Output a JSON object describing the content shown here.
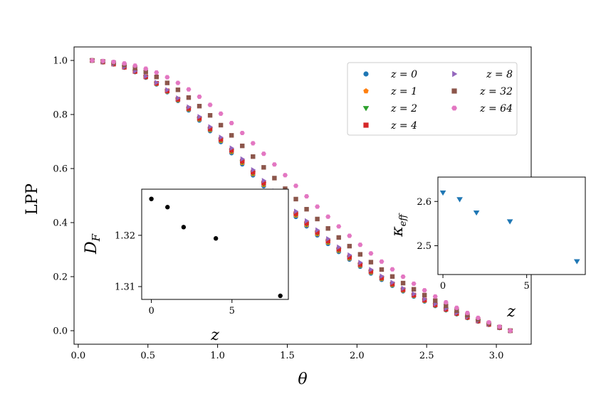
{
  "chart_data": [
    {
      "type": "scatter",
      "xlabel": "θ",
      "ylabel": "LPP",
      "xlim": [
        -0.03,
        3.25
      ],
      "ylim": [
        -0.05,
        1.05
      ],
      "xticks": [
        "0.0",
        "0.5",
        "1.0",
        "1.5",
        "2.0",
        "2.5",
        "3.0"
      ],
      "yticks": [
        "0.0",
        "0.2",
        "0.4",
        "0.6",
        "0.8",
        "1.0"
      ],
      "grid": false,
      "legend_position": "top-right",
      "n_points": 40,
      "x_range": [
        0.1,
        3.1
      ],
      "series": [
        {
          "name": "z = 0",
          "marker": "circle",
          "color": "#1f77b4",
          "half_theta": 1.62,
          "k": 2.4
        },
        {
          "name": "z = 1",
          "marker": "pentagon",
          "color": "#ff7f0e",
          "half_theta": 1.635,
          "k": 2.4
        },
        {
          "name": "z = 2",
          "marker": "tri-down",
          "color": "#2ca02c",
          "half_theta": 1.645,
          "k": 2.4
        },
        {
          "name": "z = 4",
          "marker": "square",
          "color": "#d62728",
          "half_theta": 1.66,
          "k": 2.4
        },
        {
          "name": "z = 8",
          "marker": "tri-right",
          "color": "#9467bd",
          "half_theta": 1.69,
          "k": 2.4
        },
        {
          "name": "z = 32",
          "marker": "square",
          "color": "#8c564b",
          "half_theta": 1.8,
          "k": 2.55
        },
        {
          "name": "z = 64",
          "marker": "hexagon",
          "color": "#e377c2",
          "half_theta": 1.92,
          "k": 2.7
        }
      ],
      "legend_labels": [
        "z = 0",
        "z = 1",
        "z = 2",
        "z = 4",
        "z = 8",
        "z = 32",
        "z = 64"
      ]
    },
    {
      "type": "scatter",
      "xlabel": "z",
      "ylabel": "D_F",
      "xticks": [
        "0",
        "5"
      ],
      "yticks": [
        "1.31",
        "1.32"
      ],
      "xlim": [
        -0.6,
        8.5
      ],
      "ylim": [
        1.3075,
        1.329
      ],
      "series": [
        {
          "name": "",
          "color": "#000000",
          "marker": "circle",
          "x": [
            0,
            1,
            2,
            4,
            8
          ],
          "y": [
            1.3271,
            1.3255,
            1.3216,
            1.3194,
            1.3082
          ]
        }
      ]
    },
    {
      "type": "scatter",
      "xlabel": "z",
      "ylabel": "κ_eff",
      "xticks": [
        "0",
        "5"
      ],
      "yticks": [
        "2.5",
        "2.6"
      ],
      "xlim": [
        -0.3,
        8.5
      ],
      "ylim": [
        2.435,
        2.655
      ],
      "series": [
        {
          "name": "",
          "color": "#1f77b4",
          "marker": "tri-down",
          "x": [
            0,
            1,
            2,
            4,
            8
          ],
          "y": [
            2.62,
            2.605,
            2.575,
            2.555,
            2.465
          ]
        }
      ]
    }
  ]
}
